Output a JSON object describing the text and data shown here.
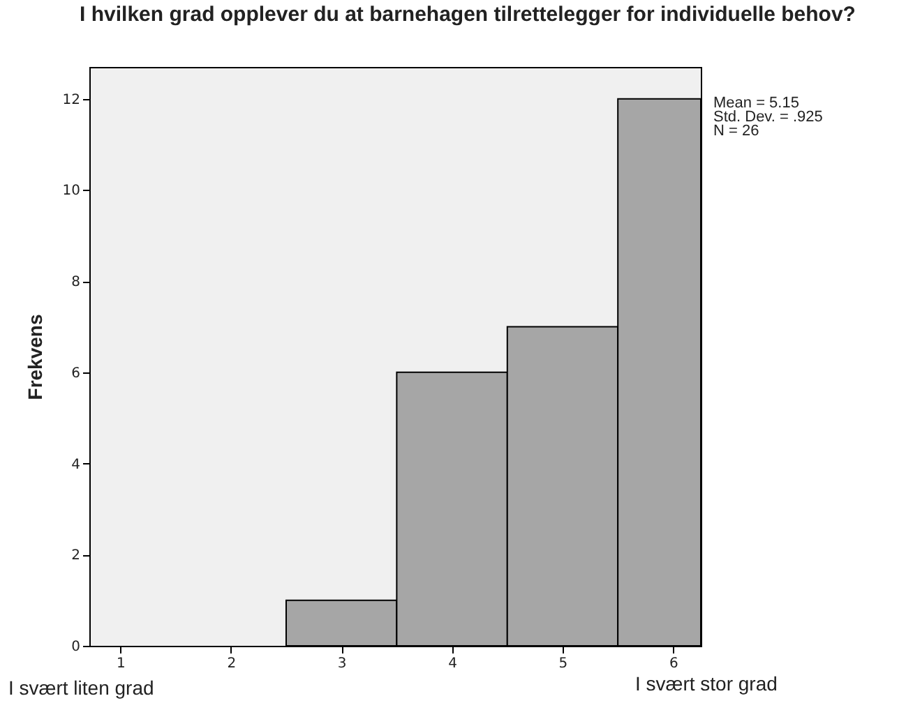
{
  "chart_data": {
    "type": "histogram",
    "title": "I hvilken grad opplever du at barnehagen tilrettelegger  for individuelle behov?",
    "ylabel": "Frekvens",
    "bins": [
      2.5,
      3.5,
      4.5,
      5.5,
      6.25
    ],
    "values": [
      1,
      6,
      7,
      12
    ],
    "color": "#a6a6a6",
    "xlim": [
      0.72,
      6.25
    ],
    "xticks": [
      1,
      2,
      3,
      4,
      5,
      6
    ],
    "ylim": [
      0,
      12.7
    ],
    "yticks": [
      0,
      2,
      4,
      6,
      8,
      10,
      12
    ],
    "grid": false,
    "annotations": [
      "Mean = 5.15",
      "Std. Dev. = .925",
      "N = 26",
      "I svært liten grad",
      "I svært stor grad"
    ]
  }
}
